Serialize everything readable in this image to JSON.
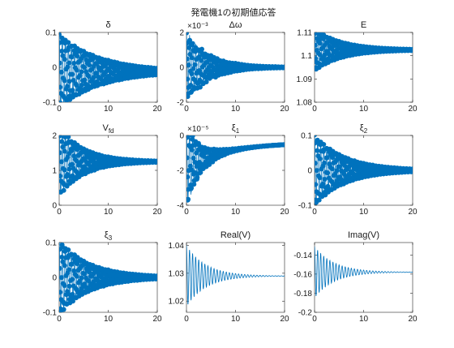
{
  "figure": {
    "suptitle": "発電機1の初期値応答",
    "accent": "#0072bd"
  },
  "chart_data": [
    {
      "type": "scatter",
      "title": "δ",
      "title_sub": "",
      "multiplier": "",
      "xlim": [
        0,
        20
      ],
      "ylim": [
        -0.1,
        0.1
      ],
      "xticks": [
        0,
        10,
        20
      ],
      "yticks": [
        -0.1,
        0,
        0.1
      ],
      "yticklabels": [
        "-0.1",
        "0",
        "0.1"
      ],
      "grid": false,
      "series": [
        {
          "center": -0.012,
          "amp0": 0.105,
          "decay": 0.12,
          "freq": 1.6,
          "noise": 0.04,
          "marker": "circle"
        }
      ]
    },
    {
      "type": "scatter",
      "title": "Δω",
      "title_sub": "",
      "multiplier": "×10⁻³",
      "xlim": [
        0,
        20
      ],
      "ylim": [
        -2,
        2
      ],
      "xticks": [
        0,
        10,
        20
      ],
      "yticks": [
        -2,
        0,
        2
      ],
      "yticklabels": [
        "-2",
        "0",
        "2"
      ],
      "grid": false,
      "series": [
        {
          "center": 0.0,
          "amp0": 1.9,
          "decay": 0.22,
          "freq": 1.6,
          "noise": 0.25,
          "marker": "circle"
        }
      ]
    },
    {
      "type": "scatter",
      "title": "E",
      "title_sub": "",
      "multiplier": "",
      "xlim": [
        0,
        20
      ],
      "ylim": [
        1.08,
        1.11
      ],
      "xticks": [
        0,
        10,
        20
      ],
      "yticks": [
        1.08,
        1.09,
        1.1,
        1.11
      ],
      "yticklabels": [
        "1.08",
        "1.09",
        "1.1",
        "1.11"
      ],
      "grid": false,
      "series": [
        {
          "center": 1.1025,
          "amp0": 0.009,
          "decay": 0.18,
          "freq": 1.6,
          "noise": 0.0,
          "marker": "circle"
        }
      ]
    },
    {
      "type": "scatter",
      "title": "V",
      "title_sub": "fd",
      "multiplier": "",
      "xlim": [
        0,
        20
      ],
      "ylim": [
        0,
        2
      ],
      "xticks": [
        0,
        10,
        20
      ],
      "yticks": [
        0,
        1,
        2
      ],
      "yticklabels": [
        "0",
        "1",
        "2"
      ],
      "grid": false,
      "series": [
        {
          "center": 1.25,
          "amp0": 1.0,
          "decay": 0.2,
          "freq": 1.6,
          "noise": 0.1,
          "marker": "circle"
        }
      ]
    },
    {
      "type": "scatter",
      "title": "ξ",
      "title_sub": "1",
      "multiplier": "×10⁻⁵",
      "xlim": [
        0,
        20
      ],
      "ylim": [
        -4,
        0
      ],
      "xticks": [
        0,
        10,
        20
      ],
      "yticks": [
        -4,
        -2,
        0
      ],
      "yticklabels": [
        "-4",
        "-2",
        "0"
      ],
      "grid": false,
      "series": [
        {
          "center": -1.8,
          "amp0": 2.2,
          "decay": 0.35,
          "freq": 1.6,
          "noise": 0.3,
          "drift_to": -0.4,
          "drift_rate": 0.12,
          "marker": "circle"
        }
      ]
    },
    {
      "type": "scatter",
      "title": "ξ",
      "title_sub": "2",
      "multiplier": "",
      "xlim": [
        0,
        20
      ],
      "ylim": [
        -0.1,
        0.1
      ],
      "xticks": [
        0,
        10,
        20
      ],
      "yticks": [
        -0.1,
        0,
        0.1
      ],
      "yticklabels": [
        "-0.1",
        "0",
        "0.1"
      ],
      "grid": false,
      "series": [
        {
          "center": 0.0,
          "amp0": 0.1,
          "decay": 0.16,
          "freq": 1.6,
          "noise": 0.04,
          "marker": "circle"
        }
      ]
    },
    {
      "type": "scatter",
      "title": "ξ",
      "title_sub": "3",
      "multiplier": "",
      "xlim": [
        0,
        20
      ],
      "ylim": [
        -0.1,
        0.1
      ],
      "xticks": [
        0,
        10,
        20
      ],
      "yticks": [
        -0.1,
        0,
        0.1
      ],
      "yticklabels": [
        "-0.1",
        "0",
        "0.1"
      ],
      "grid": false,
      "series": [
        {
          "center": 0.0,
          "amp0": 0.105,
          "decay": 0.16,
          "freq": 1.6,
          "noise": 0.05,
          "marker": "circle"
        }
      ]
    },
    {
      "type": "line",
      "title": "Real(V)",
      "title_sub": "",
      "multiplier": "",
      "xlim": [
        0,
        20
      ],
      "ylim": [
        1.016,
        1.041
      ],
      "xticks": [
        0,
        10,
        20
      ],
      "yticks": [
        1.02,
        1.03,
        1.04
      ],
      "yticklabels": [
        "1.02",
        "1.03",
        "1.04"
      ],
      "grid": false,
      "series": [
        {
          "center": 1.029,
          "amp0": 0.011,
          "decay": 0.25,
          "freq": 1.6,
          "noise": 0.0,
          "marker": "none"
        }
      ]
    },
    {
      "type": "line",
      "title": "Imag(V)",
      "title_sub": "",
      "multiplier": "",
      "xlim": [
        0,
        20
      ],
      "ylim": [
        -0.2,
        -0.127
      ],
      "xticks": [
        0,
        10,
        20
      ],
      "yticks": [
        -0.2,
        -0.18,
        -0.16,
        -0.14
      ],
      "yticklabels": [
        "-0.2",
        "-0.18",
        "-0.16",
        "-0.14"
      ],
      "grid": false,
      "series": [
        {
          "center": -0.158,
          "amp0": 0.027,
          "decay": 0.25,
          "freq": 1.6,
          "noise": 0.0,
          "marker": "none"
        }
      ]
    }
  ]
}
